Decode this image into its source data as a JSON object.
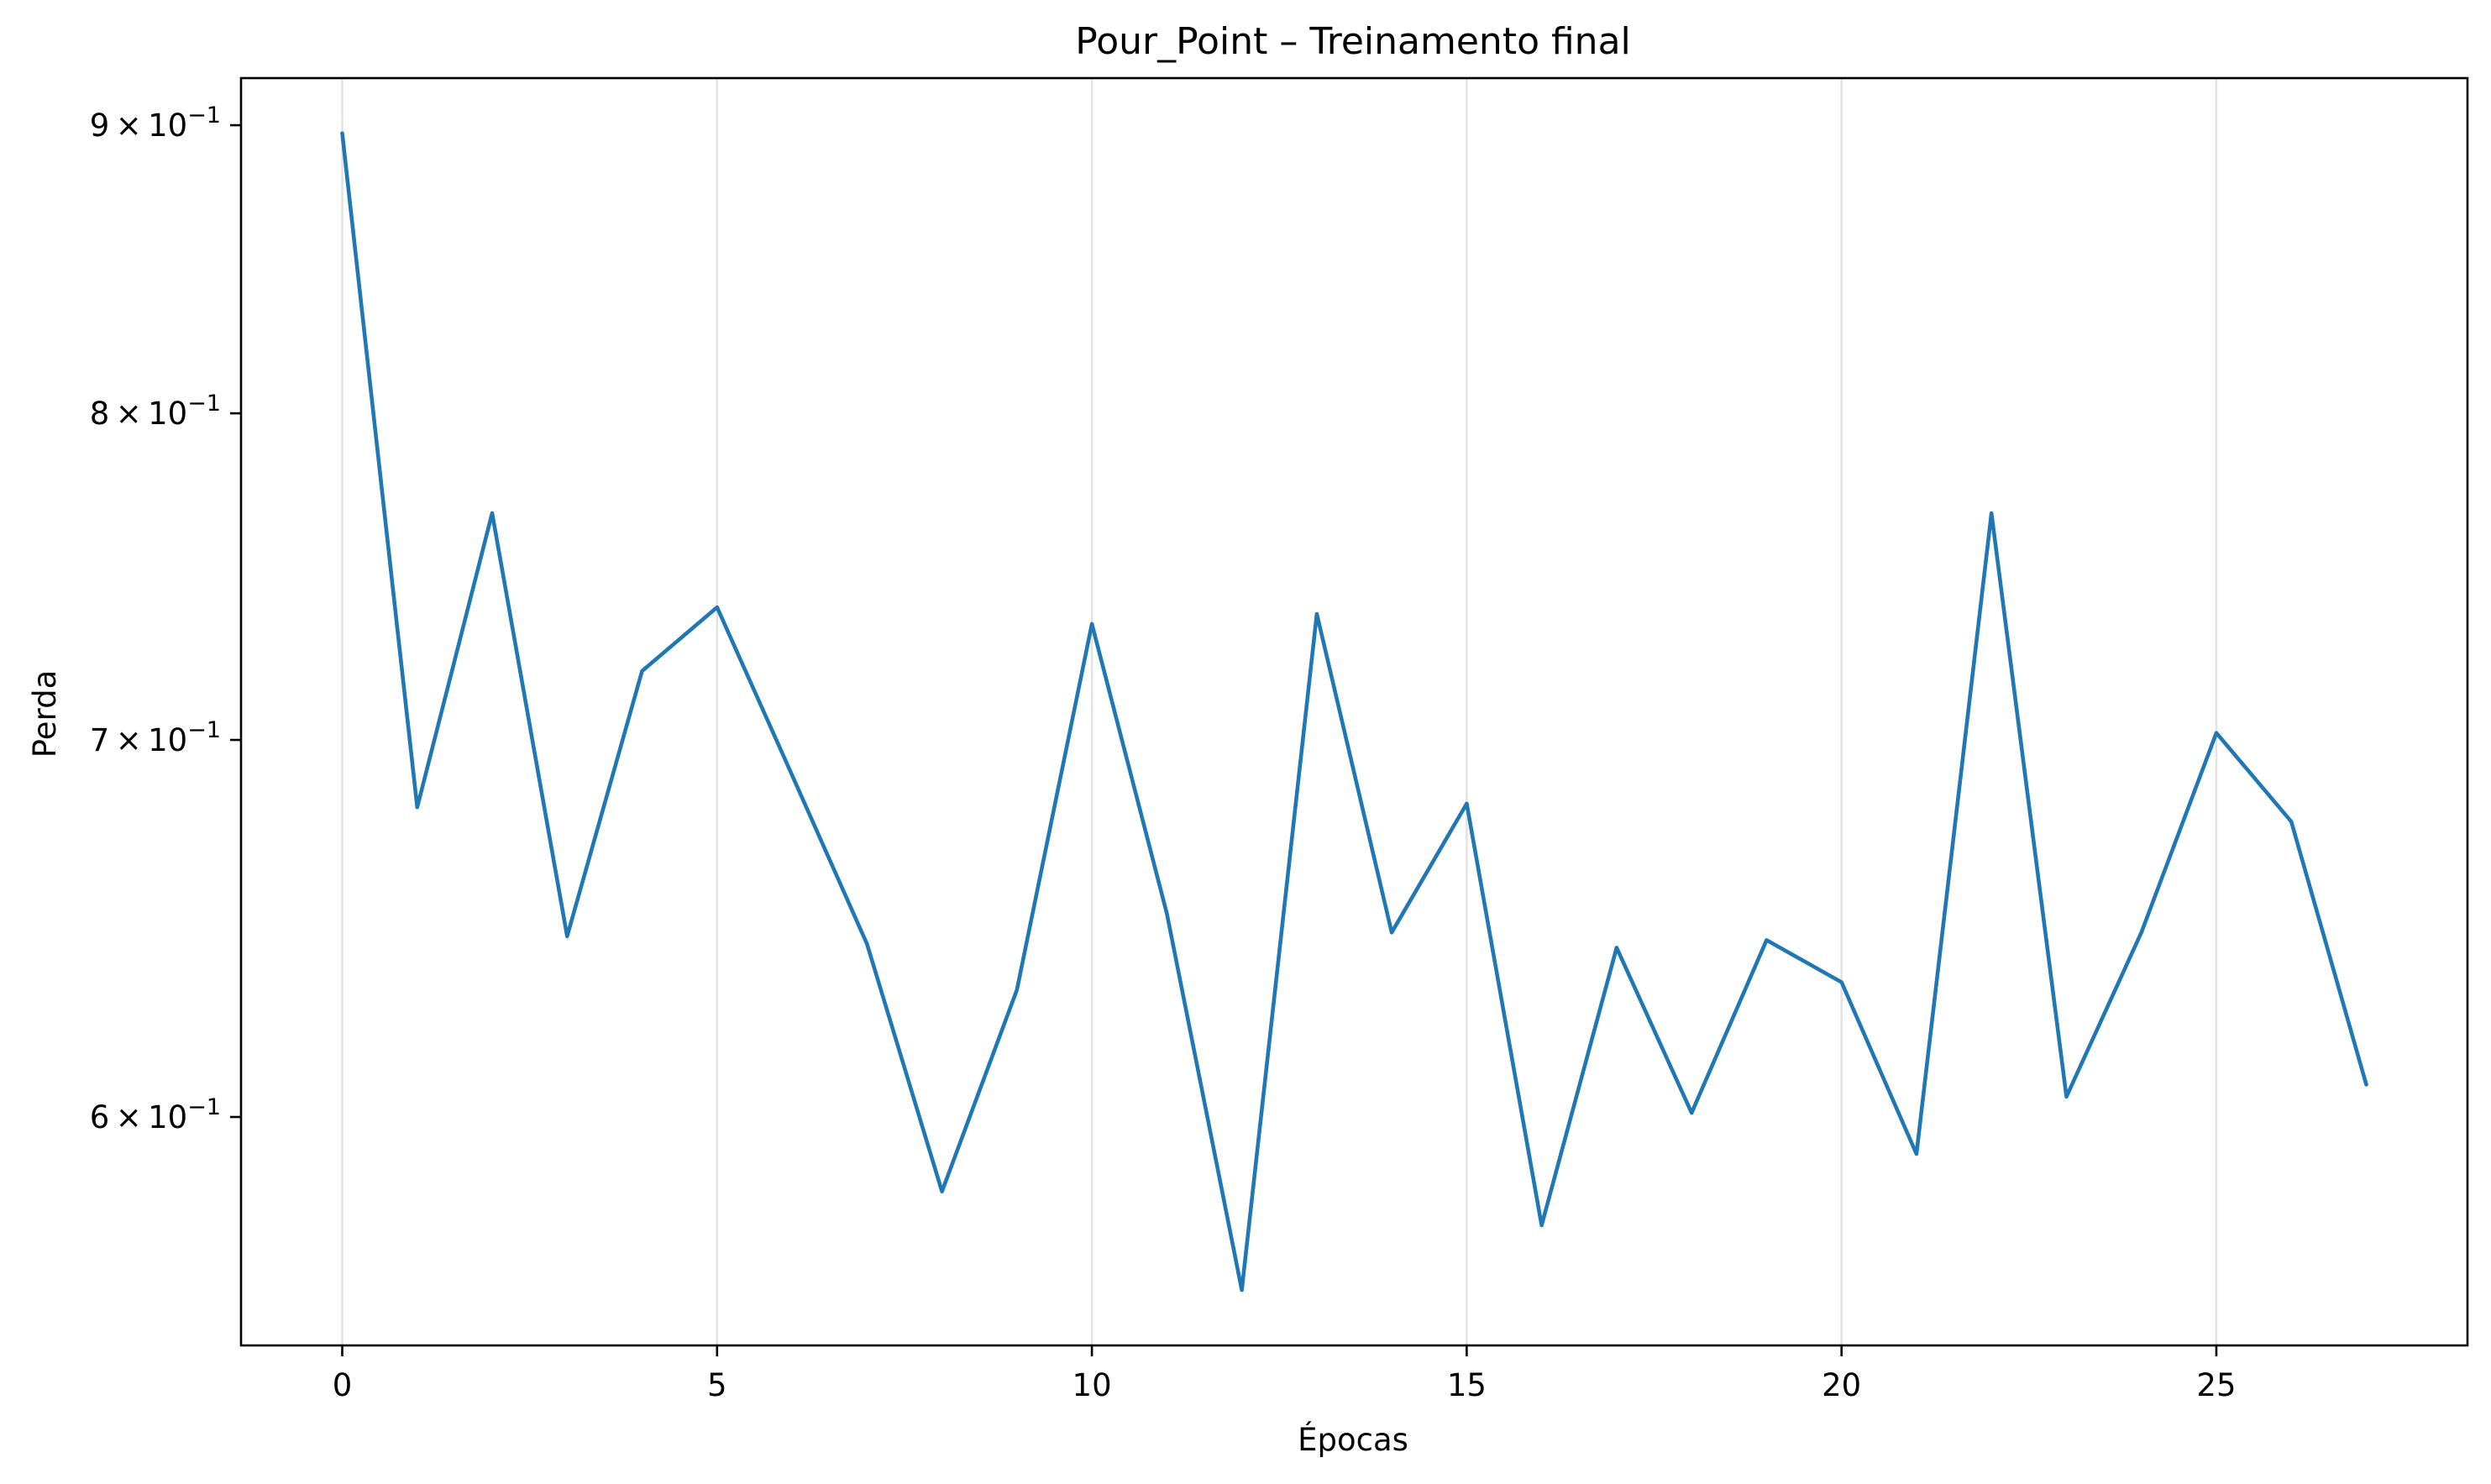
{
  "chart_data": {
    "type": "line",
    "title": "Pour_Point – Treinamento final",
    "xlabel": "Épocas",
    "ylabel": "Perda",
    "yscale": "log",
    "grid": "vertical",
    "xlim": [
      -1.35,
      28.35
    ],
    "ylim": [
      0.5465,
      0.9175
    ],
    "x_ticks": [
      0,
      5,
      10,
      15,
      20,
      25
    ],
    "x_tick_labels": [
      "0",
      "5",
      "10",
      "15",
      "20",
      "25"
    ],
    "y_ticks": [
      {
        "value": 0.9,
        "mantissa": "9",
        "base": "10",
        "exponent": "−1"
      },
      {
        "value": 0.8,
        "mantissa": "8",
        "base": "10",
        "exponent": "−1"
      },
      {
        "value": 0.7,
        "mantissa": "7",
        "base": "10",
        "exponent": "−1"
      },
      {
        "value": 0.6,
        "mantissa": "6",
        "base": "10",
        "exponent": "−1"
      }
    ],
    "series": [
      {
        "color": "#1f77b4",
        "x": [
          0,
          1,
          2,
          3,
          4,
          5,
          6,
          7,
          8,
          9,
          10,
          11,
          12,
          13,
          14,
          15,
          16,
          17,
          18,
          19,
          20,
          21,
          22,
          23,
          24,
          25,
          26,
          27
        ],
        "y": [
          0.897,
          0.681,
          0.768,
          0.646,
          0.72,
          0.739,
          0.69,
          0.644,
          0.582,
          0.632,
          0.734,
          0.652,
          0.559,
          0.737,
          0.647,
          0.682,
          0.574,
          0.643,
          0.601,
          0.645,
          0.634,
          0.591,
          0.768,
          0.605,
          0.647,
          0.702,
          0.677,
          0.608
        ]
      }
    ]
  }
}
